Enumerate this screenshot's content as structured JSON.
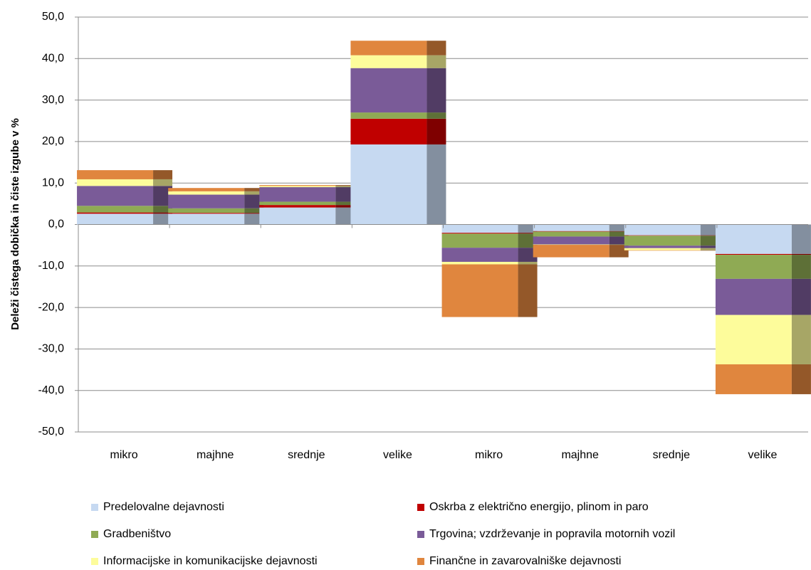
{
  "chart_data": {
    "type": "bar",
    "stacked": true,
    "y_label": "Deleži čistega dobička in čiste izgube v %",
    "categories": [
      "mikro",
      "majhne",
      "srednje",
      "velike",
      "mikro",
      "majhne",
      "srednje",
      "velike"
    ],
    "series": [
      {
        "name": "Predelovalne dejavnosti",
        "color": "#c6d9f1",
        "values": [
          2.6,
          2.6,
          4.1,
          19.3,
          -2.0,
          -1.6,
          -2.6,
          -7.1
        ]
      },
      {
        "name": "Oskrba z električno energijo, plinom in paro",
        "color": "#c00000",
        "values": [
          0.3,
          0.2,
          0.6,
          6.2,
          -0.2,
          -0.1,
          -0.1,
          -0.2
        ]
      },
      {
        "name": "Gradbeništvo",
        "color": "#8faa54",
        "values": [
          1.6,
          1.1,
          0.8,
          1.5,
          -3.4,
          -1.2,
          -2.4,
          -5.8
        ]
      },
      {
        "name": "Trgovina; vzdrževanje in popravila motornih vozil",
        "color": "#7a5b98",
        "values": [
          4.8,
          3.3,
          3.5,
          10.7,
          -3.4,
          -1.9,
          -0.6,
          -8.7
        ]
      },
      {
        "name": "Informacijske in komunikacijske dejavnosti",
        "color": "#fdfc9b",
        "values": [
          1.6,
          0.8,
          0.3,
          3.1,
          -0.6,
          -0.1,
          -0.5,
          -11.9
        ]
      },
      {
        "name": "Finančne in zavarovalniške dejavnosti",
        "color": "#e0863e",
        "values": [
          2.2,
          0.8,
          0.2,
          3.5,
          -12.7,
          -3.0,
          -0.1,
          -7.2
        ]
      }
    ],
    "ylim": [
      -50,
      50
    ],
    "yticks": [
      {
        "value": -50,
        "label": "-50,0"
      },
      {
        "value": -40,
        "label": "-40,0"
      },
      {
        "value": -30,
        "label": "-30,0"
      },
      {
        "value": -20,
        "label": "-20,0"
      },
      {
        "value": -10,
        "label": "-10,0"
      },
      {
        "value": 0,
        "label": "0,0"
      },
      {
        "value": 10,
        "label": "10,0"
      },
      {
        "value": 20,
        "label": "20,0"
      },
      {
        "value": 30,
        "label": "30,0"
      },
      {
        "value": 40,
        "label": "40,0"
      },
      {
        "value": 50,
        "label": "50,0"
      }
    ],
    "grid": true,
    "legend": "bottom"
  }
}
